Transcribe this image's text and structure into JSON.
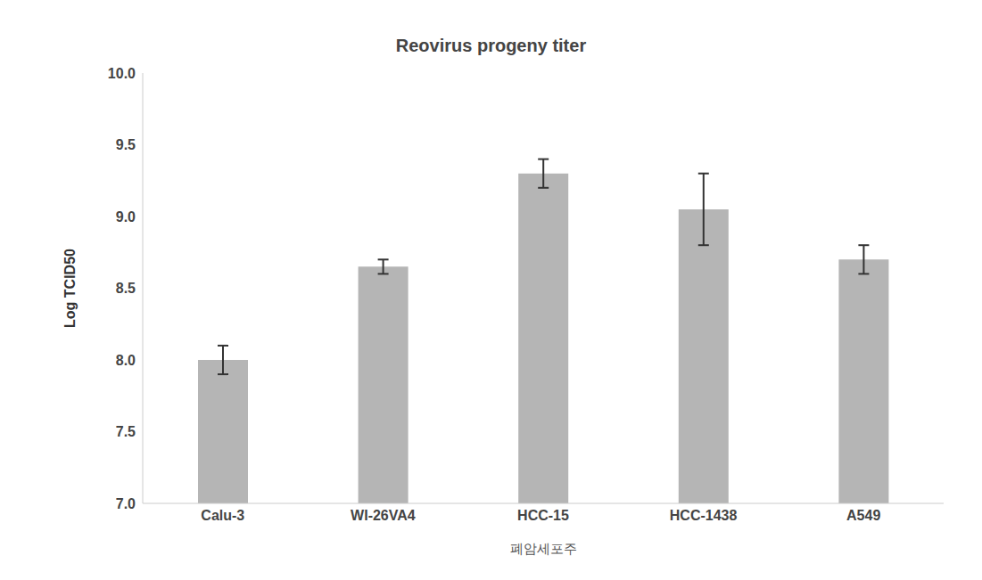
{
  "chart_data": {
    "type": "bar",
    "title": "Reovirus progeny titer",
    "x_label": "폐암세포주",
    "y_label": "Log TCID50",
    "categories": [
      "Calu-3",
      "WI-26VA4",
      "HCC-15",
      "HCC-1438",
      "A549"
    ],
    "values": [
      8.0,
      8.65,
      9.3,
      9.05,
      8.7
    ],
    "errors": [
      0.1,
      0.05,
      0.1,
      0.25,
      0.1
    ],
    "color": "#b5b5b5",
    "ylim": [
      7,
      10
    ],
    "yticks": [
      {
        "value": 7,
        "label": "7.0"
      },
      {
        "value": 7.5,
        "label": "7.5"
      },
      {
        "value": 8,
        "label": "8.0"
      },
      {
        "value": 8.5,
        "label": "8.5"
      },
      {
        "value": 9,
        "label": "9.0"
      },
      {
        "value": 9.5,
        "label": "9.5"
      },
      {
        "value": 10,
        "label": "10.0"
      }
    ],
    "grid": false
  }
}
